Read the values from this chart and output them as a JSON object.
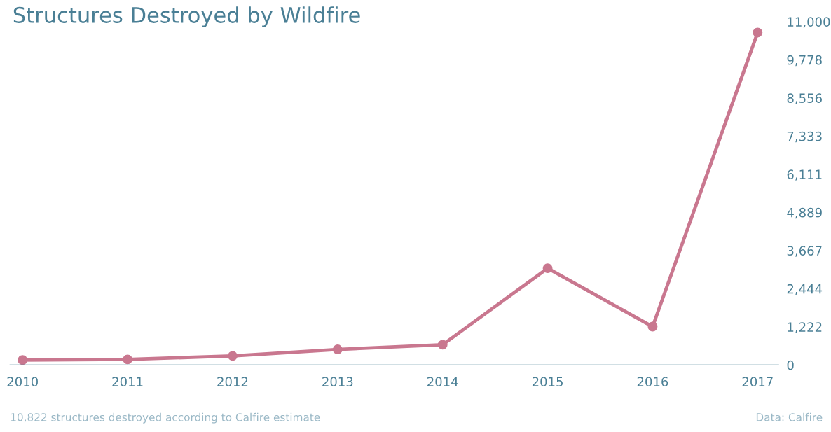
{
  "chart_data": {
    "type": "line",
    "title": "Structures Destroyed by Wildfire",
    "categories": [
      "2010",
      "2011",
      "2012",
      "2013",
      "2014",
      "2015",
      "2016",
      "2017"
    ],
    "series": [
      {
        "color": "#c9778f",
        "values": [
          160,
          180,
          290,
          500,
          650,
          3100,
          1230,
          10650
        ]
      }
    ],
    "ylim": [
      0,
      11000
    ],
    "yticks": [
      0,
      {
        "value": 1222,
        "label": "1,222"
      },
      {
        "value": 2444,
        "label": "2,444"
      },
      {
        "value": 3667,
        "label": "3,667"
      },
      {
        "value": 4889,
        "label": "4,889"
      },
      {
        "value": 6111,
        "label": "6,111"
      },
      {
        "value": 7333,
        "label": "7,333"
      },
      {
        "value": 8556,
        "label": "8,556"
      },
      {
        "value": 9778,
        "label": "9,778"
      },
      {
        "value": 11000,
        "label": "11,000"
      }
    ],
    "marker": "circle",
    "line_style": "solid",
    "grid": false,
    "legend": false,
    "annotations": [
      "10,822 structures destroyed according to Calfire estimate",
      "Data: Calfire"
    ]
  }
}
